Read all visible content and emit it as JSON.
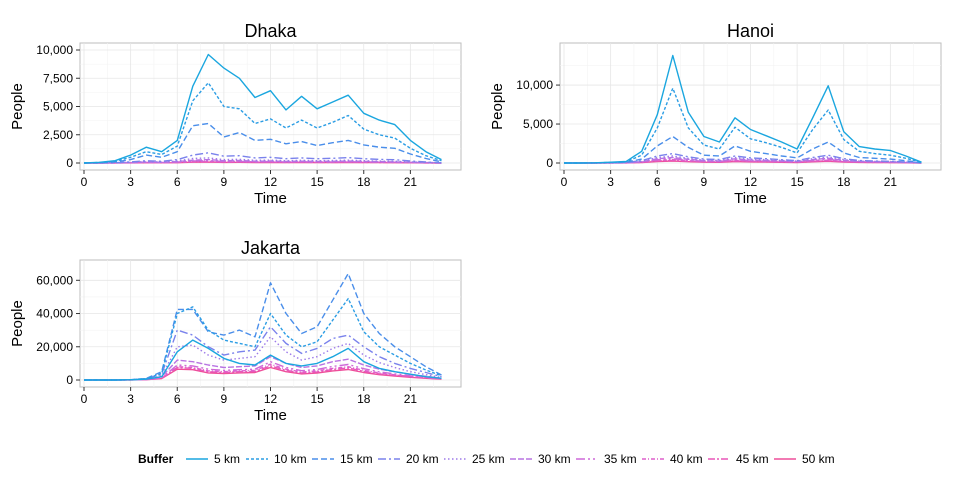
{
  "legend": {
    "title": "Buffer",
    "entries": [
      "5 km",
      "10 km",
      "15 km",
      "20 km",
      "25 km",
      "30 km",
      "35 km",
      "40 km",
      "45 km",
      "50 km"
    ],
    "colors": [
      "#1aa6df",
      "#2b9de4",
      "#4a8eea",
      "#7a82ec",
      "#9d7ae9",
      "#b873e2",
      "#ce68d8",
      "#de5ecb",
      "#e957b8",
      "#ee4f9a"
    ]
  },
  "chart_data": [
    {
      "type": "line",
      "title": "Dhaka",
      "xlabel": "Time",
      "ylabel": "People",
      "xlim": [
        0,
        24
      ],
      "ylim": [
        0,
        10000
      ],
      "xticks": [
        0,
        3,
        6,
        9,
        12,
        15,
        18,
        21
      ],
      "xtick_labels": [
        "0",
        "3",
        "6",
        "9",
        "12",
        "15",
        "18",
        "21"
      ],
      "yticks": [
        0,
        2500,
        5000,
        7500,
        10000
      ],
      "ytick_labels": [
        "0",
        "2,500",
        "5,000",
        "7,500",
        "10,000"
      ],
      "grid": true,
      "x": [
        0,
        1,
        2,
        3,
        4,
        5,
        6,
        7,
        8,
        9,
        10,
        11,
        12,
        13,
        14,
        15,
        16,
        17,
        18,
        19,
        20,
        21,
        22,
        23
      ],
      "series": [
        {
          "name": "5 km",
          "values": [
            0,
            60,
            200,
            700,
            1400,
            1000,
            2000,
            6800,
            9600,
            8400,
            7500,
            5800,
            6400,
            4700,
            5900,
            4800,
            5400,
            6000,
            4400,
            3800,
            3400,
            2000,
            1000,
            300
          ]
        },
        {
          "name": "10 km",
          "values": [
            0,
            40,
            150,
            500,
            1000,
            750,
            1500,
            5500,
            7100,
            5000,
            4800,
            3500,
            3900,
            3100,
            3800,
            3100,
            3600,
            4200,
            3000,
            2500,
            2200,
            1300,
            650,
            200
          ]
        },
        {
          "name": "15 km",
          "values": [
            0,
            20,
            80,
            300,
            700,
            500,
            1000,
            3300,
            3500,
            2300,
            2700,
            2000,
            2100,
            1700,
            1900,
            1550,
            1800,
            2000,
            1600,
            1400,
            1300,
            800,
            400,
            100
          ]
        },
        {
          "name": "20 km",
          "values": [
            0,
            10,
            30,
            100,
            200,
            150,
            300,
            700,
            900,
            600,
            650,
            450,
            500,
            380,
            450,
            380,
            420,
            480,
            380,
            320,
            290,
            180,
            90,
            20
          ]
        },
        {
          "name": "25 km",
          "values": [
            0,
            5,
            20,
            60,
            120,
            90,
            180,
            400,
            450,
            300,
            330,
            240,
            260,
            200,
            240,
            200,
            220,
            250,
            200,
            170,
            150,
            100,
            50,
            10
          ]
        },
        {
          "name": "30 km",
          "values": [
            0,
            5,
            15,
            40,
            80,
            60,
            120,
            250,
            300,
            200,
            220,
            160,
            180,
            140,
            160,
            140,
            150,
            170,
            140,
            120,
            100,
            70,
            35,
            8
          ]
        },
        {
          "name": "35 km",
          "values": [
            0,
            3,
            10,
            30,
            60,
            45,
            90,
            180,
            200,
            140,
            150,
            110,
            120,
            95,
            110,
            95,
            100,
            115,
            95,
            80,
            70,
            45,
            25,
            5
          ]
        },
        {
          "name": "40 km",
          "values": [
            0,
            2,
            8,
            20,
            40,
            30,
            60,
            130,
            150,
            100,
            110,
            80,
            90,
            70,
            80,
            70,
            75,
            85,
            70,
            60,
            50,
            35,
            18,
            4
          ]
        },
        {
          "name": "45 km",
          "values": [
            0,
            2,
            6,
            15,
            30,
            22,
            45,
            100,
            110,
            75,
            80,
            60,
            65,
            52,
            60,
            52,
            56,
            64,
            52,
            45,
            38,
            26,
            13,
            3
          ]
        },
        {
          "name": "50 km",
          "values": [
            0,
            1,
            5,
            10,
            20,
            15,
            30,
            70,
            80,
            55,
            60,
            45,
            48,
            38,
            44,
            38,
            41,
            47,
            38,
            33,
            28,
            19,
            10,
            2
          ]
        }
      ]
    },
    {
      "type": "line",
      "title": "Hanoi",
      "xlabel": "Time",
      "ylabel": "People",
      "xlim": [
        0,
        24
      ],
      "ylim": [
        0,
        14500
      ],
      "xticks": [
        0,
        3,
        6,
        9,
        12,
        15,
        18,
        21
      ],
      "xtick_labels": [
        "0",
        "3",
        "6",
        "9",
        "12",
        "15",
        "18",
        "21"
      ],
      "yticks": [
        0,
        5000,
        10000
      ],
      "ytick_labels": [
        "0",
        "5,000",
        "10,000"
      ],
      "grid": true,
      "x": [
        0,
        1,
        2,
        3,
        4,
        5,
        6,
        7,
        8,
        9,
        10,
        11,
        12,
        13,
        14,
        15,
        16,
        17,
        18,
        19,
        20,
        21,
        22,
        23
      ],
      "series": [
        {
          "name": "5 km",
          "values": [
            0,
            0,
            20,
            100,
            200,
            1500,
            6200,
            13800,
            6500,
            3400,
            2700,
            5800,
            4300,
            3500,
            2700,
            1800,
            5800,
            9900,
            4000,
            2100,
            1800,
            1600,
            900,
            100
          ]
        },
        {
          "name": "10 km",
          "values": [
            0,
            0,
            15,
            80,
            150,
            1000,
            4500,
            9600,
            4500,
            2300,
            1800,
            4600,
            3100,
            2600,
            2000,
            1300,
            4300,
            6800,
            3000,
            1500,
            1200,
            1000,
            600,
            80
          ]
        },
        {
          "name": "15 km",
          "values": [
            0,
            0,
            10,
            50,
            100,
            500,
            2200,
            3400,
            2000,
            1000,
            900,
            2200,
            1500,
            1200,
            900,
            650,
            1800,
            2700,
            1300,
            700,
            600,
            500,
            300,
            50
          ]
        },
        {
          "name": "20 km",
          "values": [
            0,
            0,
            8,
            30,
            60,
            300,
            900,
            1200,
            800,
            500,
            450,
            900,
            650,
            550,
            420,
            300,
            700,
            1000,
            550,
            320,
            260,
            220,
            130,
            25
          ]
        },
        {
          "name": "25 km",
          "values": [
            0,
            0,
            6,
            25,
            45,
            220,
            700,
            900,
            600,
            380,
            340,
            700,
            500,
            420,
            330,
            240,
            550,
            780,
            430,
            250,
            200,
            170,
            100,
            20
          ]
        },
        {
          "name": "30 km",
          "values": [
            0,
            0,
            5,
            20,
            35,
            170,
            550,
            700,
            470,
            300,
            260,
            540,
            390,
            330,
            260,
            190,
            430,
            610,
            340,
            200,
            160,
            135,
            80,
            15
          ]
        },
        {
          "name": "35 km",
          "values": [
            0,
            0,
            4,
            15,
            28,
            130,
            420,
            540,
            360,
            230,
            200,
            420,
            300,
            255,
            200,
            150,
            335,
            470,
            260,
            155,
            125,
            105,
            62,
            12
          ]
        },
        {
          "name": "40 km",
          "values": [
            0,
            0,
            3,
            12,
            22,
            100,
            330,
            420,
            280,
            180,
            155,
            330,
            235,
            200,
            155,
            118,
            260,
            365,
            205,
            120,
            98,
            82,
            48,
            9
          ]
        },
        {
          "name": "45 km",
          "values": [
            0,
            0,
            2,
            9,
            17,
            78,
            255,
            325,
            215,
            140,
            120,
            255,
            182,
            155,
            120,
            91,
            200,
            283,
            158,
            93,
            76,
            64,
            37,
            7
          ]
        },
        {
          "name": "50 km",
          "values": [
            0,
            0,
            2,
            7,
            13,
            60,
            195,
            250,
            165,
            108,
            92,
            195,
            140,
            119,
            92,
            70,
            154,
            218,
            121,
            71,
            58,
            49,
            28,
            5
          ]
        }
      ]
    },
    {
      "type": "line",
      "title": "Jakarta",
      "xlabel": "Time",
      "ylabel": "People",
      "xlim": [
        0,
        24
      ],
      "ylim": [
        0,
        68000
      ],
      "xticks": [
        0,
        3,
        6,
        9,
        12,
        15,
        18,
        21
      ],
      "xtick_labels": [
        "0",
        "3",
        "6",
        "9",
        "12",
        "15",
        "18",
        "21"
      ],
      "yticks": [
        0,
        20000,
        40000,
        60000
      ],
      "ytick_labels": [
        "0",
        "20,000",
        "40,000",
        "60,000"
      ],
      "grid": true,
      "x": [
        0,
        1,
        2,
        3,
        4,
        5,
        6,
        7,
        8,
        9,
        10,
        11,
        12,
        13,
        14,
        15,
        16,
        17,
        18,
        19,
        20,
        21,
        22,
        23
      ],
      "series": [
        {
          "name": "5 km",
          "values": [
            0,
            0,
            0,
            100,
            500,
            2000,
            17000,
            24000,
            19000,
            13000,
            10000,
            9000,
            15000,
            10000,
            8500,
            10000,
            14000,
            19000,
            11000,
            7000,
            5000,
            3500,
            2000,
            1000
          ]
        },
        {
          "name": "10 km",
          "values": [
            0,
            0,
            0,
            150,
            800,
            4000,
            40000,
            44000,
            30000,
            24000,
            22000,
            20000,
            40000,
            27000,
            20000,
            23000,
            36000,
            49000,
            29000,
            20000,
            15000,
            10000,
            6000,
            2500
          ]
        },
        {
          "name": "15 km",
          "values": [
            0,
            0,
            0,
            200,
            900,
            5000,
            42500,
            42500,
            29000,
            27000,
            30000,
            26000,
            58500,
            40000,
            28000,
            32000,
            48000,
            64000,
            40000,
            28000,
            20000,
            14000,
            8000,
            3000
          ]
        },
        {
          "name": "20 km",
          "values": [
            0,
            0,
            0,
            150,
            700,
            3500,
            30000,
            27000,
            20000,
            15000,
            17000,
            18000,
            32000,
            22000,
            16000,
            19000,
            25000,
            27000,
            20000,
            14000,
            10000,
            7000,
            4500,
            2000
          ]
        },
        {
          "name": "25 km",
          "values": [
            0,
            0,
            0,
            120,
            500,
            2500,
            20000,
            21000,
            15000,
            12000,
            13000,
            14000,
            26000,
            17000,
            12000,
            14000,
            19000,
            22000,
            15000,
            10500,
            7500,
            5000,
            3200,
            1500
          ]
        },
        {
          "name": "30 km",
          "values": [
            0,
            0,
            0,
            100,
            400,
            2000,
            12000,
            11000,
            9000,
            7500,
            8000,
            8500,
            14000,
            10000,
            7500,
            8500,
            11000,
            12500,
            9000,
            6500,
            5000,
            3300,
            2200,
            1000
          ]
        },
        {
          "name": "35 km",
          "values": [
            0,
            0,
            0,
            80,
            300,
            1500,
            9000,
            8500,
            6500,
            5800,
            6200,
            6500,
            11000,
            7500,
            5600,
            6300,
            8200,
            9300,
            6800,
            4900,
            3700,
            2500,
            1600,
            800
          ]
        },
        {
          "name": "40 km",
          "values": [
            0,
            0,
            0,
            60,
            250,
            1200,
            8000,
            7500,
            5500,
            5000,
            5500,
            5800,
            9500,
            6500,
            4800,
            5500,
            7000,
            8000,
            5800,
            4200,
            3100,
            2100,
            1400,
            700
          ]
        },
        {
          "name": "45 km",
          "values": [
            0,
            0,
            0,
            50,
            220,
            1000,
            7500,
            7000,
            5000,
            4600,
            5000,
            5200,
            8500,
            5800,
            4300,
            4900,
            6300,
            7200,
            5200,
            3700,
            2800,
            1900,
            1200,
            600
          ]
        },
        {
          "name": "50 km",
          "values": [
            0,
            0,
            0,
            40,
            180,
            900,
            6500,
            6200,
            4300,
            3900,
            4300,
            4500,
            7500,
            5000,
            3700,
            4200,
            5500,
            6300,
            4500,
            3200,
            2400,
            1600,
            1000,
            500
          ]
        }
      ]
    }
  ]
}
